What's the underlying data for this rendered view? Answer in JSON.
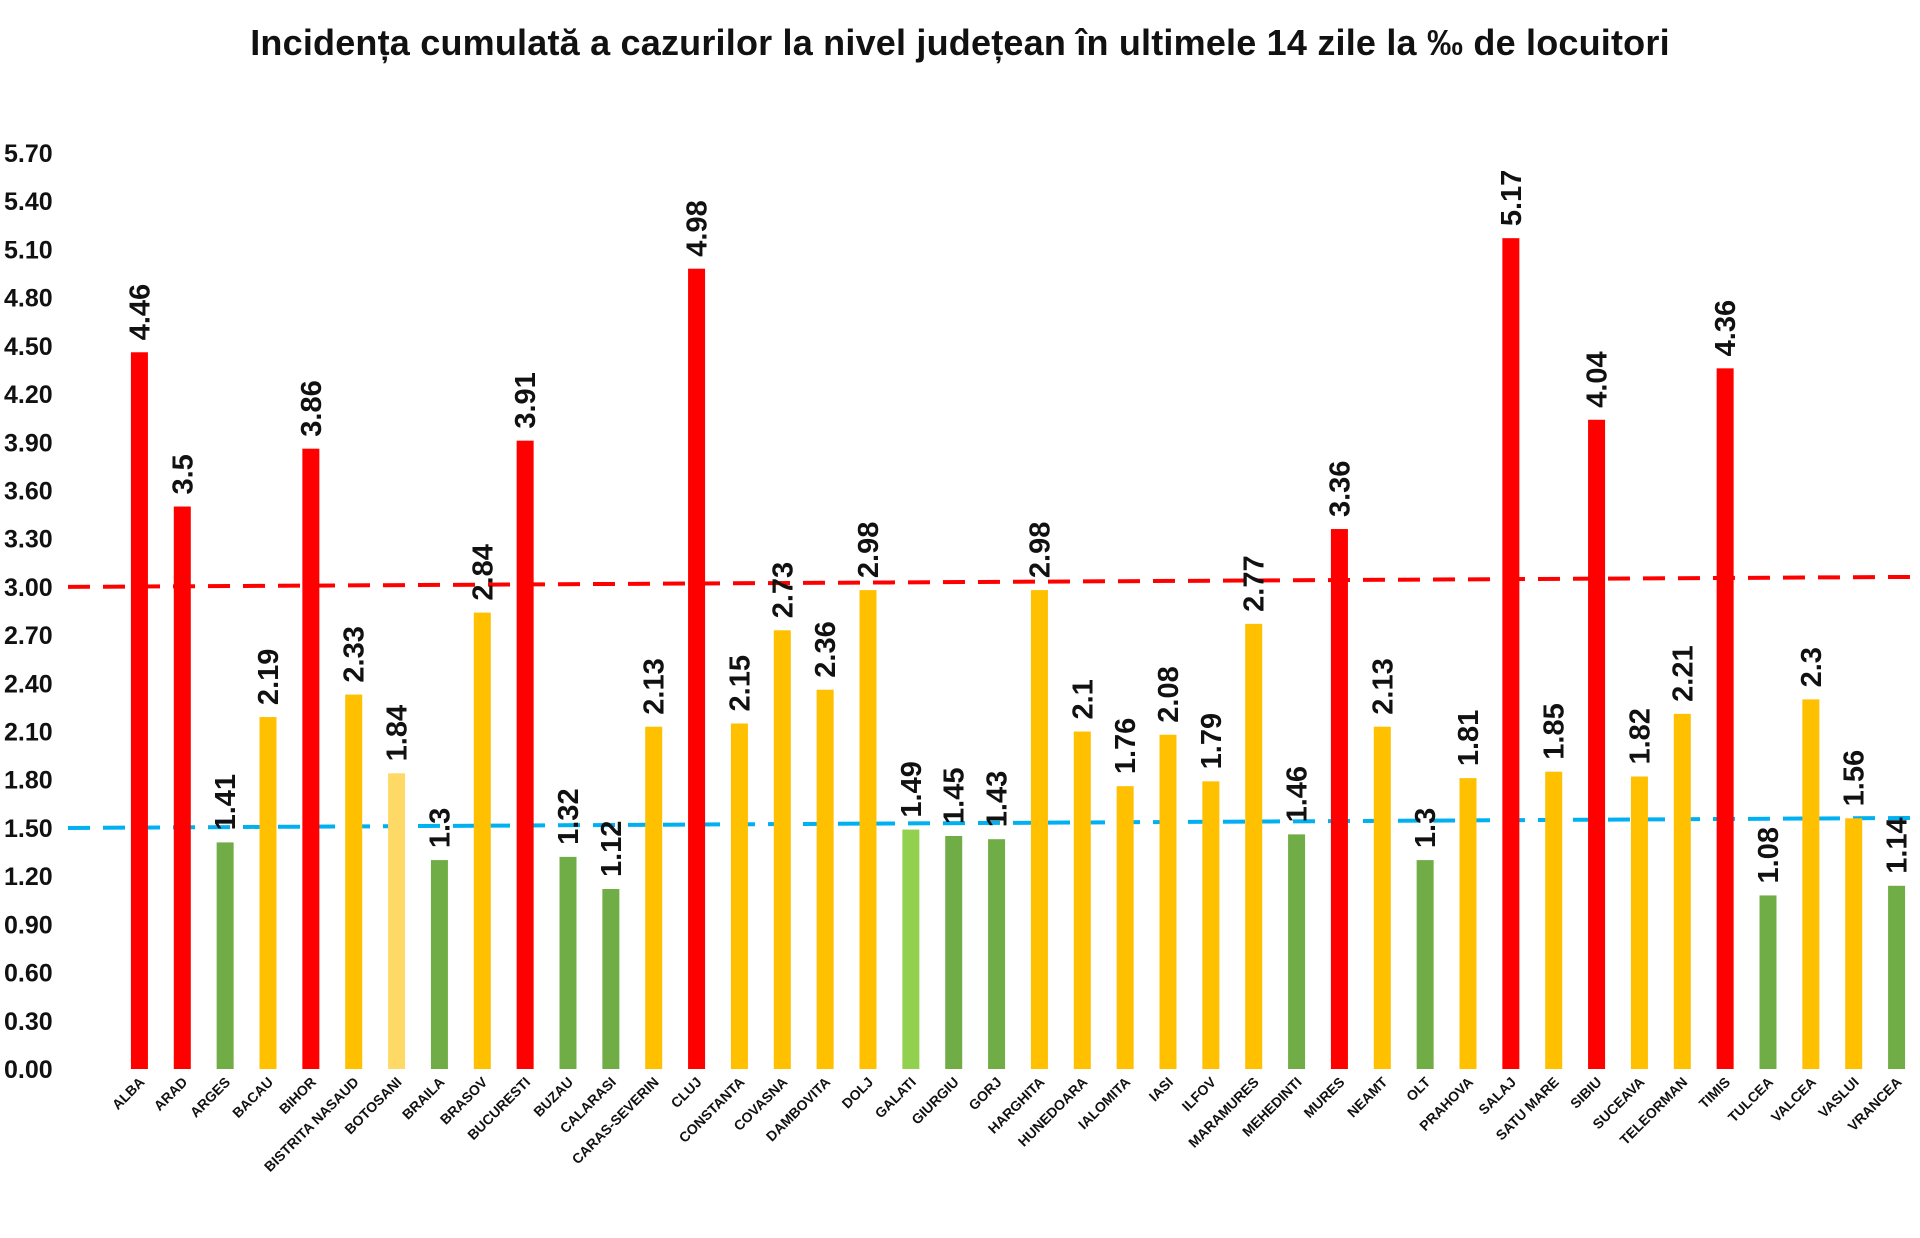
{
  "chart_data": {
    "type": "bar",
    "title": "Incidența cumulată a cazurilor la nivel județean în ultimele 14 zile la ‰ de locuitori",
    "xlabel": "",
    "ylabel": "",
    "ylim": [
      0,
      5.7
    ],
    "y_ticks": [
      "0.00",
      "0.30",
      "0.60",
      "0.90",
      "1.20",
      "1.50",
      "1.80",
      "2.10",
      "2.40",
      "2.70",
      "3.00",
      "3.30",
      "3.60",
      "3.90",
      "4.20",
      "4.50",
      "4.80",
      "5.10",
      "5.40",
      "5.70"
    ],
    "categories": [
      "ALBA",
      "ARAD",
      "ARGES",
      "BACAU",
      "BIHOR",
      "BISTRITA NASAUD",
      "BOTOSANI",
      "BRAILA",
      "BRASOV",
      "BUCURESTI",
      "BUZAU",
      "CALARASI",
      "CARAS-SEVERIN",
      "CLUJ",
      "CONSTANTA",
      "COVASNA",
      "DAMBOVITA",
      "DOLJ",
      "GALATI",
      "GIURGIU",
      "GORJ",
      "HARGHITA",
      "HUNEDOARA",
      "IALOMITA",
      "IASI",
      "ILFOV",
      "MARAMURES",
      "MEHEDINTI",
      "MURES",
      "NEAMT",
      "OLT",
      "PRAHOVA",
      "SALAJ",
      "SATU MARE",
      "SIBIU",
      "SUCEAVA",
      "TELEORMAN",
      "TIMIS",
      "TULCEA",
      "VALCEA",
      "VASLUI",
      "VRANCEA"
    ],
    "values": [
      4.46,
      3.5,
      1.41,
      2.19,
      3.86,
      2.33,
      1.84,
      1.3,
      2.84,
      3.91,
      1.32,
      1.12,
      2.13,
      4.98,
      2.15,
      2.73,
      2.36,
      2.98,
      1.49,
      1.45,
      1.43,
      2.98,
      2.1,
      1.76,
      2.08,
      1.79,
      2.77,
      1.46,
      3.36,
      2.13,
      1.3,
      1.81,
      5.17,
      1.85,
      4.04,
      1.82,
      2.21,
      4.36,
      1.08,
      2.3,
      1.56,
      1.14
    ],
    "value_labels": [
      "4.46",
      "3.5",
      "1.41",
      "2.19",
      "3.86",
      "2.33",
      "1.84",
      "1.3",
      "2.84",
      "3.91",
      "1.32",
      "1.12",
      "2.13",
      "4.98",
      "2.15",
      "2.73",
      "2.36",
      "2.98",
      "1.49",
      "1.45",
      "1.43",
      "2.98",
      "2.1",
      "1.76",
      "2.08",
      "1.79",
      "2.77",
      "1.46",
      "3.36",
      "2.13",
      "1.3",
      "1.81",
      "5.17",
      "1.85",
      "4.04",
      "1.82",
      "2.21",
      "4.36",
      "1.08",
      "2.3",
      "1.56",
      "1.14"
    ],
    "bar_colors": [
      "#ff0000",
      "#ff0000",
      "#70ad47",
      "#ffc000",
      "#ff0000",
      "#ffc000",
      "#ffd966",
      "#70ad47",
      "#ffc000",
      "#ff0000",
      "#70ad47",
      "#70ad47",
      "#ffc000",
      "#ff0000",
      "#ffc000",
      "#ffc000",
      "#ffc000",
      "#ffc000",
      "#92d050",
      "#70ad47",
      "#70ad47",
      "#ffc000",
      "#ffc000",
      "#ffc000",
      "#ffc000",
      "#ffc000",
      "#ffc000",
      "#70ad47",
      "#ff0000",
      "#ffc000",
      "#70ad47",
      "#ffc000",
      "#ff0000",
      "#ffc000",
      "#ff0000",
      "#ffc000",
      "#ffc000",
      "#ff0000",
      "#70ad47",
      "#ffc000",
      "#ffc000",
      "#70ad47"
    ],
    "reference_lines": [
      {
        "value": 3.0,
        "color": "#ff0000",
        "style": "dashed"
      },
      {
        "value": 1.5,
        "color": "#00b0f0",
        "style": "dashed"
      }
    ],
    "grid": false,
    "legend": "none"
  }
}
